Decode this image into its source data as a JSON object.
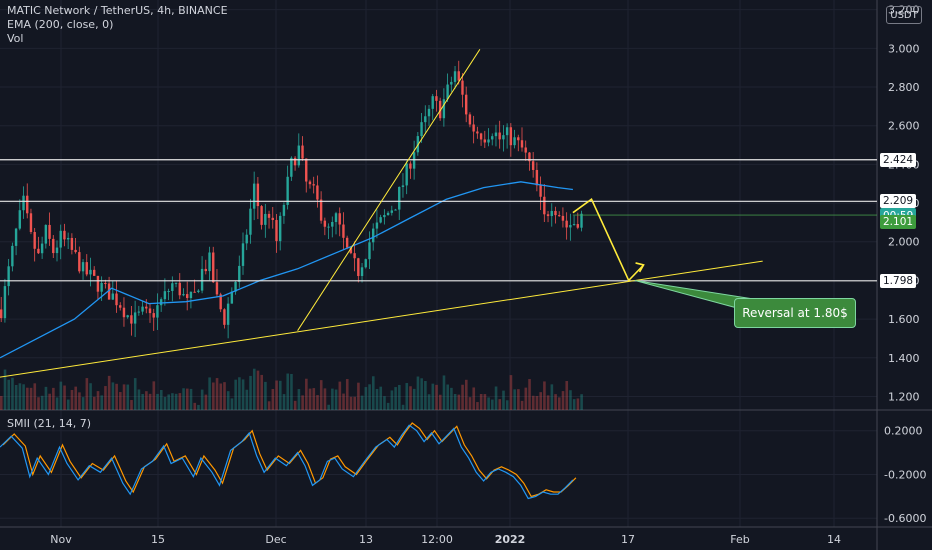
{
  "header": {
    "title": "MATIC Network / TetherUS, 4h, BINANCE",
    "indicator_ema": "EMA (200, close, 0)",
    "indicator_vol": "Vol",
    "indicator_smii": "SMII (21, 14, 7)",
    "currency": "USDT"
  },
  "annotation": {
    "text": "Reversal at 1.80$"
  },
  "price_badges": [
    {
      "label": "2.424",
      "price": 2.424,
      "bg": "#ffffff",
      "fg": "#131722"
    },
    {
      "label": "2.209",
      "price": 2.209,
      "bg": "#ffffff",
      "fg": "#131722"
    },
    {
      "label": "2.138",
      "price": 2.138,
      "bg": "#26a69a",
      "fg": "#ffffff"
    },
    {
      "label": "00:59",
      "price": 2.131,
      "bg": "#26a69a",
      "fg": "#ffffff"
    },
    {
      "label": "2.101",
      "price": 2.101,
      "bg": "#3d9c3d",
      "fg": "#ffffff"
    },
    {
      "label": "1.798",
      "price": 1.798,
      "bg": "#ffffff",
      "fg": "#131722"
    }
  ],
  "chart_data": {
    "type": "candlestick",
    "title": "MATIC Network / TetherUS, 4h, BINANCE",
    "x_ticks": [
      "Nov",
      "15",
      "Dec",
      "13",
      "12:00",
      "2022",
      "17",
      "Feb",
      "14"
    ],
    "price_axis": {
      "ticks": [
        "3.200",
        "3.000",
        "2.800",
        "2.600",
        "2.400",
        "2.200",
        "2.000",
        "1.800",
        "1.600",
        "1.400",
        "1.200"
      ],
      "range": [
        1.13,
        3.25
      ]
    },
    "smii_axis": {
      "ticks": [
        "0.2000",
        "-0.2000",
        "-0.6000"
      ],
      "range": [
        -0.68,
        0.38
      ]
    },
    "price_path": [
      [
        0,
        1.65
      ],
      [
        2,
        1.85
      ],
      [
        4,
        2.05
      ],
      [
        6,
        2.2
      ],
      [
        8,
        2.02
      ],
      [
        10,
        1.92
      ],
      [
        12,
        2.05
      ],
      [
        14,
        1.95
      ],
      [
        16,
        2.02
      ],
      [
        18,
        1.98
      ],
      [
        20,
        1.92
      ],
      [
        22,
        1.85
      ],
      [
        24,
        1.82
      ],
      [
        26,
        1.78
      ],
      [
        28,
        1.75
      ],
      [
        30,
        1.72
      ],
      [
        32,
        1.68
      ],
      [
        34,
        1.62
      ],
      [
        36,
        1.6
      ],
      [
        38,
        1.63
      ],
      [
        40,
        1.61
      ],
      [
        42,
        1.66
      ],
      [
        44,
        1.72
      ],
      [
        46,
        1.78
      ],
      [
        48,
        1.75
      ],
      [
        50,
        1.68
      ],
      [
        52,
        1.72
      ],
      [
        54,
        1.85
      ],
      [
        56,
        1.9
      ],
      [
        58,
        1.7
      ],
      [
        60,
        1.6
      ],
      [
        62,
        1.75
      ],
      [
        64,
        1.85
      ],
      [
        66,
        2.05
      ],
      [
        68,
        2.28
      ],
      [
        70,
        2.1
      ],
      [
        72,
        2.15
      ],
      [
        74,
        2.0
      ],
      [
        76,
        2.2
      ],
      [
        78,
        2.4
      ],
      [
        80,
        2.48
      ],
      [
        82,
        2.3
      ],
      [
        84,
        2.25
      ],
      [
        86,
        2.15
      ],
      [
        88,
        2.05
      ],
      [
        90,
        2.12
      ],
      [
        92,
        2.0
      ],
      [
        94,
        1.9
      ],
      [
        96,
        1.85
      ],
      [
        98,
        1.95
      ],
      [
        100,
        2.05
      ],
      [
        102,
        2.1
      ],
      [
        104,
        2.15
      ],
      [
        106,
        2.2
      ],
      [
        108,
        2.3
      ],
      [
        110,
        2.42
      ],
      [
        112,
        2.55
      ],
      [
        114,
        2.62
      ],
      [
        116,
        2.72
      ],
      [
        118,
        2.68
      ],
      [
        120,
        2.78
      ],
      [
        122,
        2.88
      ],
      [
        124,
        2.75
      ],
      [
        126,
        2.6
      ],
      [
        128,
        2.57
      ],
      [
        130,
        2.55
      ],
      [
        132,
        2.58
      ],
      [
        134,
        2.53
      ],
      [
        136,
        2.55
      ],
      [
        138,
        2.52
      ],
      [
        140,
        2.48
      ],
      [
        142,
        2.4
      ],
      [
        144,
        2.28
      ],
      [
        146,
        2.12
      ],
      [
        148,
        2.2
      ],
      [
        150,
        2.15
      ],
      [
        152,
        2.08
      ],
      [
        154,
        2.1
      ],
      [
        156,
        2.13
      ]
    ],
    "ema200_path": [
      [
        0,
        1.4
      ],
      [
        20,
        1.6
      ],
      [
        30,
        1.76
      ],
      [
        40,
        1.68
      ],
      [
        50,
        1.69
      ],
      [
        60,
        1.72
      ],
      [
        70,
        1.8
      ],
      [
        80,
        1.86
      ],
      [
        90,
        1.94
      ],
      [
        100,
        2.02
      ],
      [
        110,
        2.12
      ],
      [
        120,
        2.22
      ],
      [
        130,
        2.28
      ],
      [
        140,
        2.31
      ],
      [
        150,
        2.28
      ],
      [
        154,
        2.27
      ]
    ],
    "smii_path": [
      [
        0,
        0.05
      ],
      [
        3,
        0.15
      ],
      [
        6,
        0.04
      ],
      [
        8,
        -0.22
      ],
      [
        10,
        -0.05
      ],
      [
        13,
        -0.2
      ],
      [
        16,
        0.05
      ],
      [
        18,
        -0.1
      ],
      [
        21,
        -0.25
      ],
      [
        24,
        -0.12
      ],
      [
        27,
        -0.18
      ],
      [
        30,
        -0.05
      ],
      [
        33,
        -0.28
      ],
      [
        35,
        -0.38
      ],
      [
        38,
        -0.15
      ],
      [
        41,
        -0.08
      ],
      [
        44,
        0.06
      ],
      [
        46,
        -0.1
      ],
      [
        49,
        -0.05
      ],
      [
        52,
        -0.22
      ],
      [
        54,
        -0.05
      ],
      [
        57,
        -0.18
      ],
      [
        59,
        -0.3
      ],
      [
        62,
        0.02
      ],
      [
        65,
        0.1
      ],
      [
        67,
        0.18
      ],
      [
        69,
        -0.03
      ],
      [
        71,
        -0.18
      ],
      [
        74,
        -0.05
      ],
      [
        77,
        -0.12
      ],
      [
        80,
        0.0
      ],
      [
        82,
        -0.12
      ],
      [
        84,
        -0.3
      ],
      [
        86,
        -0.25
      ],
      [
        88,
        -0.08
      ],
      [
        90,
        -0.05
      ],
      [
        92,
        -0.15
      ],
      [
        95,
        -0.22
      ],
      [
        98,
        -0.08
      ],
      [
        101,
        0.05
      ],
      [
        104,
        0.12
      ],
      [
        106,
        0.05
      ],
      [
        108,
        0.16
      ],
      [
        110,
        0.25
      ],
      [
        112,
        0.2
      ],
      [
        114,
        0.1
      ],
      [
        116,
        0.18
      ],
      [
        118,
        0.08
      ],
      [
        120,
        0.15
      ],
      [
        122,
        0.22
      ],
      [
        124,
        0.05
      ],
      [
        126,
        -0.05
      ],
      [
        128,
        -0.18
      ],
      [
        130,
        -0.26
      ],
      [
        132,
        -0.18
      ],
      [
        134,
        -0.15
      ],
      [
        136,
        -0.18
      ],
      [
        138,
        -0.22
      ],
      [
        140,
        -0.3
      ],
      [
        142,
        -0.42
      ],
      [
        144,
        -0.4
      ],
      [
        146,
        -0.36
      ],
      [
        148,
        -0.38
      ],
      [
        150,
        -0.38
      ],
      [
        152,
        -0.32
      ],
      [
        154,
        -0.25
      ]
    ]
  }
}
